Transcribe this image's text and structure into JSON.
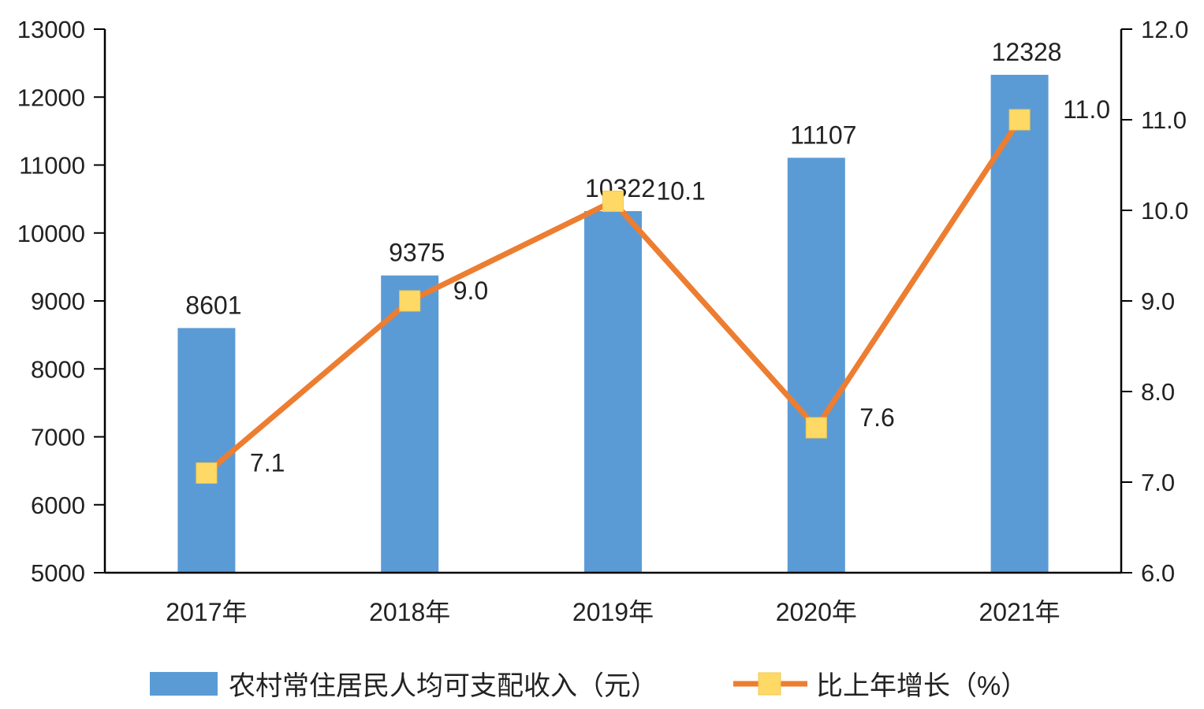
{
  "chart_data": {
    "type": "bar",
    "categories": [
      "2017年",
      "2018年",
      "2019年",
      "2020年",
      "2021年"
    ],
    "series": [
      {
        "name": "农村常住居民人均可支配收入（元）",
        "type": "bar",
        "axis": "left",
        "values": [
          8601,
          9375,
          10322,
          11107,
          12328
        ],
        "labels": [
          "8601",
          "9375",
          "10322",
          "11107",
          "12328"
        ],
        "color": "#5B9BD5"
      },
      {
        "name": "比上年增长（%）",
        "type": "line",
        "axis": "right",
        "values": [
          7.1,
          9.0,
          10.1,
          7.6,
          11.0
        ],
        "labels": [
          "7.1",
          "9.0",
          "10.1",
          "7.6",
          "11.0"
        ],
        "color": "#ED7D31",
        "marker_color": "#FFD966"
      }
    ],
    "left_axis": {
      "ylim": [
        5000,
        13000
      ],
      "ticks": [
        "5000",
        "6000",
        "7000",
        "8000",
        "9000",
        "10000",
        "11000",
        "12000",
        "13000"
      ]
    },
    "right_axis": {
      "ylim": [
        6.0,
        12.0
      ],
      "ticks": [
        "6.0",
        "7.0",
        "8.0",
        "9.0",
        "10.0",
        "11.0",
        "12.0"
      ]
    },
    "grid": false,
    "legend_position": "bottom"
  }
}
